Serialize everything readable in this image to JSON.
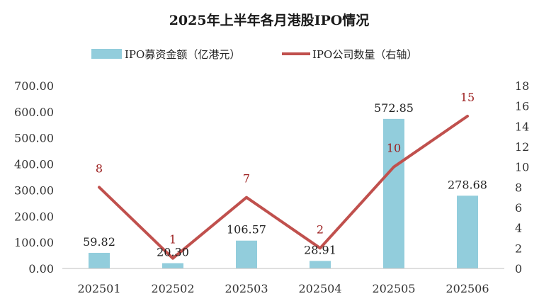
{
  "chart_data": {
    "type": "bar",
    "title": "2025年上半年各月港股IPO情况",
    "categories": [
      "202501",
      "202502",
      "202503",
      "202504",
      "202505",
      "202506"
    ],
    "series": [
      {
        "name": "IPO募资金额（亿港元）",
        "type": "bar",
        "axis": "left",
        "color": "#92cddc",
        "values": [
          59.82,
          20.3,
          106.57,
          28.91,
          572.85,
          278.68
        ],
        "labels": [
          "59.82",
          "20.30",
          "106.57",
          "28.91",
          "572.85",
          "278.68"
        ]
      },
      {
        "name": "IPO公司数量（右轴）",
        "type": "line",
        "axis": "right",
        "color": "#c0504d",
        "values": [
          8,
          1,
          7,
          2,
          10,
          15
        ],
        "labels": [
          "8",
          "1",
          "7",
          "2",
          "10",
          "15"
        ]
      }
    ],
    "y_left": {
      "min": 0,
      "max": 700,
      "ticks": [
        0,
        100,
        200,
        300,
        400,
        500,
        600,
        700
      ],
      "tick_labels": [
        "0.00",
        "100.00",
        "200.00",
        "300.00",
        "400.00",
        "500.00",
        "600.00",
        "700.00"
      ]
    },
    "y_right": {
      "min": 0,
      "max": 18,
      "ticks": [
        0,
        2,
        4,
        6,
        8,
        10,
        12,
        14,
        16,
        18
      ],
      "tick_labels": [
        "0",
        "2",
        "4",
        "6",
        "8",
        "10",
        "12",
        "14",
        "16",
        "18"
      ]
    },
    "grid": false,
    "legend_position": "top-center",
    "line_label_color": "#9b1c1c",
    "axis_color": "#bfbfbf"
  }
}
